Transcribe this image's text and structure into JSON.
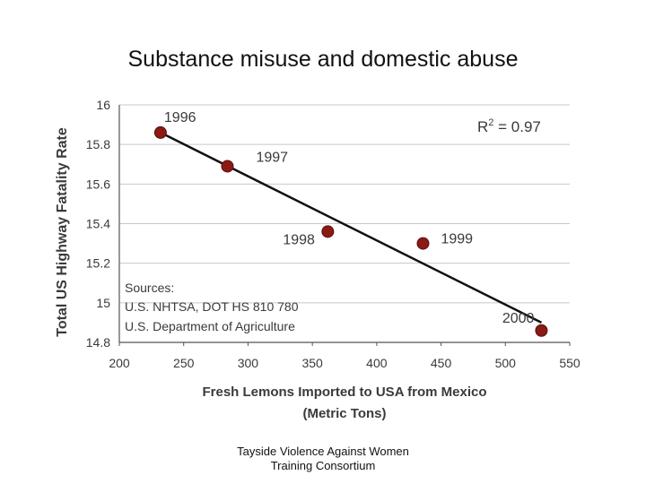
{
  "slide": {
    "title": "Substance misuse and domestic abuse",
    "footer_line1": "Tayside Violence Against Women",
    "footer_line2": "Training Consortium"
  },
  "chart_data": {
    "type": "scatter",
    "title": "",
    "xlabel_line1": "Fresh Lemons Imported to USA from Mexico",
    "xlabel_line2": "(Metric Tons)",
    "ylabel": "Total US Highway Fatality Rate",
    "xlim": [
      200,
      550
    ],
    "ylim": [
      14.8,
      16
    ],
    "xticks": [
      200,
      250,
      300,
      350,
      400,
      450,
      500,
      550
    ],
    "yticks": [
      14.8,
      15,
      15.2,
      15.4,
      15.6,
      15.8,
      16
    ],
    "ytick_labels": [
      "14.8",
      "15",
      "15.2",
      "15.4",
      "15.6",
      "15.8",
      "16"
    ],
    "grid": "horizontal",
    "points": [
      {
        "label": "1996",
        "x": 232,
        "y": 15.86
      },
      {
        "label": "1997",
        "x": 284,
        "y": 15.69
      },
      {
        "label": "1998",
        "x": 362,
        "y": 15.36
      },
      {
        "label": "1999",
        "x": 436,
        "y": 15.3
      },
      {
        "label": "2000",
        "x": 528,
        "y": 14.86
      }
    ],
    "trendline": {
      "x": [
        232,
        528
      ],
      "y": [
        15.86,
        14.9
      ]
    },
    "r_squared_label": "0.97",
    "sources": [
      "Sources:",
      "U.S. NHTSA, DOT HS 810 780",
      "U.S. Department of Agriculture"
    ],
    "colors": {
      "marker": "#8b1a14",
      "line": "#111111",
      "grid": "#c8c8c8",
      "text": "#3a3a3a"
    }
  }
}
